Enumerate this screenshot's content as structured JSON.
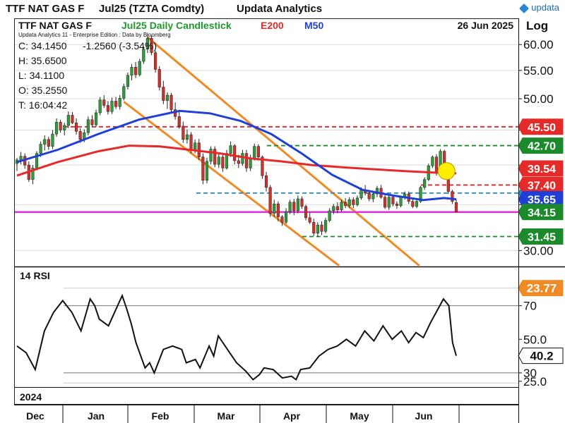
{
  "header": {
    "instrument": "TTF NAT GAS F",
    "contract": "Jul25 (TZTA Comdty)",
    "provider": "Updata Analytics",
    "logo_text": "updata"
  },
  "chart_header": {
    "series_label": "TTF NAT GAS F",
    "chart_title": "Jul25 Daily Candlestick",
    "e200_label": "E200",
    "m50_label": "M50",
    "date": "26 Jun 2025",
    "scale": "Log",
    "edition": "Updata Analytics 11 - Enterprise Edition : Data by Bloomberg"
  },
  "ohlc": {
    "close": "C: 34.1450",
    "change": "-1.2560 (-3.54%)",
    "high": "H: 35.6500",
    "low": "L: 34.1100",
    "open": "O: 35.2550",
    "time": "T: 16:04:42"
  },
  "rsi_label": "14 RSI",
  "year_label": "2024",
  "colors": {
    "candle_up": "#2e9e3a",
    "candle_down": "#d2302b",
    "e200": "#e52a2a",
    "m50": "#1f3fd6",
    "channel": "#f08a24",
    "magenta": "#e02ee0",
    "green_dash": "#1a8a2a",
    "red_dash": "#d42a2a",
    "blue_dash": "#1e8ec8",
    "rsi_line": "#111111",
    "highlight": "#ffee00"
  },
  "chart_data": [
    {
      "type": "candlestick",
      "title": "Jul25 Daily Candlestick",
      "scale": "log",
      "ylim": [
        28.5,
        62.5
      ],
      "y_ticks": [
        30,
        35,
        40,
        45,
        50,
        55,
        60
      ],
      "y_tick_labels": [
        "30.00",
        "35.00",
        "40.00",
        "45.00",
        "50.00",
        "55.00",
        "60.00"
      ],
      "x_labels": [
        "Dec",
        "Jan",
        "Feb",
        "Mar",
        "Apr",
        "May",
        "Jun"
      ],
      "candles": [
        [
          40.2,
          41.0,
          39.2,
          40.7
        ],
        [
          40.7,
          41.8,
          40.1,
          41.2
        ],
        [
          41.2,
          41.6,
          39.5,
          40.0
        ],
        [
          40.0,
          40.5,
          37.8,
          38.1
        ],
        [
          38.1,
          40.0,
          37.5,
          39.6
        ],
        [
          39.6,
          41.9,
          39.3,
          41.6
        ],
        [
          41.6,
          43.3,
          41.1,
          42.9
        ],
        [
          42.9,
          44.2,
          42.0,
          43.6
        ],
        [
          43.6,
          44.0,
          42.1,
          42.6
        ],
        [
          42.6,
          45.0,
          42.2,
          44.4
        ],
        [
          44.4,
          46.8,
          44.0,
          46.2
        ],
        [
          46.2,
          46.6,
          44.6,
          45.0
        ],
        [
          45.0,
          46.1,
          44.2,
          45.7
        ],
        [
          45.7,
          47.9,
          45.3,
          47.3
        ],
        [
          47.3,
          47.8,
          45.9,
          46.1
        ],
        [
          46.1,
          46.8,
          44.3,
          44.8
        ],
        [
          44.8,
          45.3,
          43.1,
          43.6
        ],
        [
          43.6,
          45.1,
          43.2,
          44.6
        ],
        [
          44.6,
          47.1,
          44.2,
          46.6
        ],
        [
          46.6,
          47.3,
          45.4,
          45.8
        ],
        [
          45.8,
          48.2,
          45.5,
          47.7
        ],
        [
          47.7,
          50.3,
          47.3,
          49.8
        ],
        [
          49.8,
          50.6,
          48.5,
          48.9
        ],
        [
          48.9,
          49.6,
          47.4,
          47.9
        ],
        [
          47.9,
          50.2,
          47.5,
          49.6
        ],
        [
          49.6,
          50.3,
          48.3,
          48.7
        ],
        [
          48.7,
          50.6,
          48.2,
          50.1
        ],
        [
          50.1,
          52.6,
          49.7,
          52.1
        ],
        [
          52.1,
          54.6,
          51.6,
          54.1
        ],
        [
          54.1,
          56.2,
          53.2,
          55.6
        ],
        [
          55.6,
          56.6,
          53.6,
          54.2
        ],
        [
          54.2,
          57.2,
          53.9,
          56.7
        ],
        [
          56.7,
          59.6,
          56.2,
          59.1
        ],
        [
          59.1,
          62.2,
          58.3,
          61.3
        ],
        [
          61.3,
          61.8,
          57.9,
          58.4
        ],
        [
          58.4,
          58.8,
          54.6,
          55.2
        ],
        [
          55.2,
          55.8,
          51.4,
          52.0
        ],
        [
          52.0,
          53.1,
          49.1,
          49.7
        ],
        [
          49.7,
          51.1,
          48.3,
          50.6
        ],
        [
          50.6,
          51.0,
          47.7,
          48.2
        ],
        [
          48.2,
          49.4,
          46.6,
          47.1
        ],
        [
          47.1,
          48.1,
          45.2,
          45.6
        ],
        [
          45.6,
          46.3,
          43.1,
          43.6
        ],
        [
          43.6,
          45.1,
          43.0,
          44.3
        ],
        [
          44.3,
          44.7,
          41.6,
          42.0
        ],
        [
          42.0,
          43.6,
          41.6,
          43.1
        ],
        [
          43.1,
          43.7,
          40.7,
          41.1
        ],
        [
          41.1,
          41.6,
          37.5,
          38.0
        ],
        [
          38.0,
          41.0,
          37.6,
          40.5
        ],
        [
          40.5,
          42.6,
          40.1,
          42.2
        ],
        [
          42.2,
          42.6,
          39.7,
          40.1
        ],
        [
          40.1,
          41.6,
          39.6,
          41.1
        ],
        [
          41.1,
          41.6,
          39.1,
          39.6
        ],
        [
          39.6,
          42.1,
          39.4,
          41.6
        ],
        [
          41.6,
          43.3,
          41.1,
          42.7
        ],
        [
          42.7,
          42.9,
          40.1,
          40.6
        ],
        [
          40.6,
          41.4,
          39.6,
          40.2
        ],
        [
          40.2,
          42.1,
          39.9,
          41.6
        ],
        [
          41.6,
          42.1,
          39.1,
          39.6
        ],
        [
          39.6,
          41.4,
          39.2,
          40.9
        ],
        [
          40.9,
          43.0,
          40.6,
          42.6
        ],
        [
          42.6,
          42.9,
          40.6,
          41.1
        ],
        [
          41.1,
          41.3,
          38.2,
          38.6
        ],
        [
          38.6,
          39.1,
          36.6,
          37.1
        ],
        [
          37.1,
          37.4,
          33.6,
          34.0
        ],
        [
          34.0,
          35.6,
          33.6,
          35.1
        ],
        [
          35.1,
          35.4,
          33.1,
          33.6
        ],
        [
          33.6,
          33.8,
          32.6,
          33.0
        ],
        [
          33.0,
          34.6,
          32.8,
          34.2
        ],
        [
          34.2,
          35.6,
          33.9,
          35.3
        ],
        [
          35.3,
          35.7,
          33.8,
          34.3
        ],
        [
          34.3,
          36.1,
          34.0,
          35.7
        ],
        [
          35.7,
          36.0,
          34.5,
          34.8
        ],
        [
          34.8,
          35.0,
          33.2,
          33.5
        ],
        [
          33.5,
          34.1,
          32.8,
          33.0
        ],
        [
          33.0,
          33.4,
          31.5,
          31.8
        ],
        [
          31.8,
          33.0,
          31.4,
          32.7
        ],
        [
          32.7,
          33.1,
          31.6,
          32.0
        ],
        [
          32.0,
          33.5,
          31.8,
          33.2
        ],
        [
          33.2,
          34.6,
          33.0,
          34.3
        ],
        [
          34.3,
          35.1,
          33.9,
          34.8
        ],
        [
          34.8,
          35.3,
          34.0,
          34.4
        ],
        [
          34.4,
          35.6,
          34.2,
          35.3
        ],
        [
          35.3,
          35.8,
          34.6,
          34.9
        ],
        [
          34.9,
          35.9,
          34.6,
          35.6
        ],
        [
          35.6,
          35.9,
          34.6,
          35.0
        ],
        [
          35.0,
          36.1,
          34.8,
          35.8
        ],
        [
          35.8,
          37.1,
          35.6,
          36.8
        ],
        [
          36.8,
          37.4,
          36.1,
          36.4
        ],
        [
          36.4,
          36.8,
          35.4,
          35.7
        ],
        [
          35.7,
          36.6,
          35.3,
          36.3
        ],
        [
          36.3,
          37.3,
          35.9,
          37.0
        ],
        [
          37.0,
          37.4,
          35.7,
          35.9
        ],
        [
          35.9,
          36.3,
          34.5,
          34.7
        ],
        [
          34.7,
          36.2,
          34.4,
          35.9
        ],
        [
          35.9,
          36.2,
          34.8,
          35.1
        ],
        [
          35.1,
          35.4,
          34.5,
          34.9
        ],
        [
          34.9,
          36.1,
          34.7,
          35.9
        ],
        [
          35.9,
          36.6,
          35.6,
          36.3
        ],
        [
          36.3,
          36.6,
          35.1,
          35.4
        ],
        [
          35.4,
          35.7,
          34.6,
          34.8
        ],
        [
          34.8,
          35.6,
          34.6,
          35.4
        ],
        [
          35.4,
          37.3,
          35.2,
          37.1
        ],
        [
          37.1,
          38.4,
          36.8,
          38.1
        ],
        [
          38.1,
          40.2,
          37.9,
          39.9
        ],
        [
          39.9,
          41.3,
          39.6,
          41.1
        ],
        [
          41.1,
          41.5,
          38.6,
          38.9
        ],
        [
          38.9,
          42.2,
          38.7,
          41.9
        ],
        [
          41.9,
          42.1,
          39.4,
          39.7
        ],
        [
          38.9,
          39.1,
          36.3,
          36.6
        ],
        [
          36.6,
          36.8,
          35.1,
          35.4
        ],
        [
          35.26,
          35.65,
          34.11,
          34.145
        ]
      ],
      "e200": [
        [
          0,
          38.6
        ],
        [
          20,
          40.4
        ],
        [
          40,
          41.9
        ],
        [
          55,
          42.7
        ],
        [
          70,
          42.6
        ],
        [
          85,
          42.1
        ],
        [
          100,
          41.6
        ],
        [
          115,
          40.9
        ],
        [
          130,
          40.5
        ],
        [
          145,
          40.0
        ],
        [
          160,
          39.7
        ],
        [
          175,
          39.45
        ],
        [
          190,
          39.2
        ],
        [
          205,
          39.0
        ],
        [
          216,
          38.9
        ]
      ],
      "m50": [
        [
          0,
          40.4
        ],
        [
          20,
          42.1
        ],
        [
          40,
          44.4
        ],
        [
          60,
          46.6
        ],
        [
          80,
          48.0
        ],
        [
          95,
          47.6
        ],
        [
          110,
          46.4
        ],
        [
          125,
          44.4
        ],
        [
          140,
          41.6
        ],
        [
          155,
          38.7
        ],
        [
          170,
          36.8
        ],
        [
          185,
          36.1
        ],
        [
          200,
          35.55
        ],
        [
          210,
          35.8
        ],
        [
          216,
          35.65
        ]
      ],
      "levels": [
        {
          "name": "resistance-45.50",
          "value": 45.5,
          "style": "red-dash",
          "label": "45.50"
        },
        {
          "name": "resistance-42.70",
          "value": 42.7,
          "style": "green-dash",
          "label": "42.70"
        },
        {
          "name": "e200",
          "value": 39.54,
          "style": "marker-red",
          "label": "39.54"
        },
        {
          "name": "resistance-37.40",
          "value": 37.4,
          "style": "red-dash",
          "label": "37.40"
        },
        {
          "name": "level-36.40",
          "value": 36.4,
          "style": "blue-dash",
          "label": "36.40"
        },
        {
          "name": "m50",
          "value": 35.65,
          "style": "marker-blue",
          "label": "35.65"
        },
        {
          "name": "close",
          "value": 34.15,
          "style": "magenta",
          "label": "34.15"
        },
        {
          "name": "support-31.45",
          "value": 31.45,
          "style": "green-dash",
          "label": "31.45"
        }
      ],
      "channel": {
        "upper": [
          [
            0.0,
            60.0
          ],
          [
            1.0,
            28.0
          ]
        ],
        "lower": [
          [
            0.0,
            48.0
          ],
          [
            1.0,
            28.0
          ]
        ]
      },
      "highlight_value": 39.2
    },
    {
      "type": "line",
      "title": "14 RSI",
      "ylim": [
        22,
        82
      ],
      "y_ticks": [
        25,
        30,
        50,
        70
      ],
      "y_tick_labels": [
        "25.0",
        "30",
        "50.0",
        "70"
      ],
      "guides": [
        30,
        70
      ],
      "last_value": "40.2",
      "top_marker": "23.77",
      "points": [
        [
          0,
          46
        ],
        [
          10,
          42
        ],
        [
          20,
          32
        ],
        [
          30,
          55
        ],
        [
          40,
          66
        ],
        [
          50,
          73
        ],
        [
          60,
          66
        ],
        [
          70,
          55
        ],
        [
          80,
          74
        ],
        [
          85,
          70
        ],
        [
          90,
          62
        ],
        [
          100,
          58
        ],
        [
          110,
          70
        ],
        [
          115,
          76
        ],
        [
          120,
          68
        ],
        [
          125,
          59
        ],
        [
          130,
          48
        ],
        [
          140,
          33
        ],
        [
          145,
          36
        ],
        [
          150,
          30
        ],
        [
          160,
          44
        ],
        [
          170,
          46
        ],
        [
          180,
          44
        ],
        [
          185,
          36
        ],
        [
          195,
          38
        ],
        [
          200,
          33
        ],
        [
          210,
          46
        ],
        [
          215,
          40
        ],
        [
          220,
          52
        ],
        [
          230,
          44
        ],
        [
          240,
          36
        ],
        [
          250,
          31
        ],
        [
          258,
          26
        ],
        [
          265,
          29
        ],
        [
          270,
          33
        ],
        [
          280,
          32
        ],
        [
          290,
          27
        ],
        [
          300,
          28
        ],
        [
          305,
          26
        ],
        [
          310,
          32
        ],
        [
          320,
          33
        ],
        [
          330,
          40
        ],
        [
          340,
          44
        ],
        [
          350,
          46
        ],
        [
          360,
          50
        ],
        [
          370,
          46
        ],
        [
          380,
          55
        ],
        [
          390,
          49
        ],
        [
          400,
          58
        ],
        [
          410,
          50
        ],
        [
          420,
          55
        ],
        [
          428,
          48
        ],
        [
          436,
          54
        ],
        [
          444,
          51
        ],
        [
          452,
          60
        ],
        [
          460,
          68
        ],
        [
          466,
          74
        ],
        [
          472,
          70
        ],
        [
          476,
          48
        ],
        [
          480,
          40.2
        ]
      ]
    }
  ]
}
